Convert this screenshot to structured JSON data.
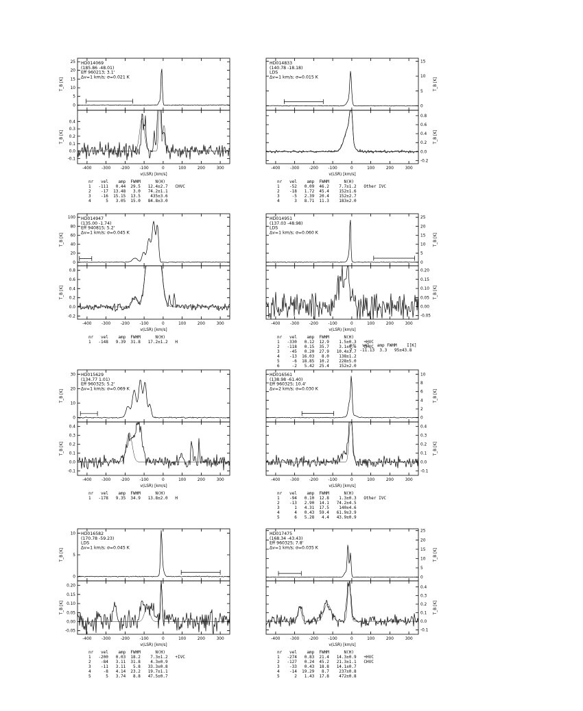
{
  "page": {
    "background": "#ffffff",
    "ink": "#000000"
  },
  "ylabel": "T_B [K]",
  "chart_data": [
    {
      "type": "line",
      "name": "HD014069",
      "info": [
        "(185.86 -48.01)",
        "Eff 960213; 3.1'",
        "Δv=1 km/s; σ=0.021 K"
      ],
      "xlabel": "v(LSR) [km/s]",
      "xlim": [
        -450,
        350
      ],
      "xticks": [
        -400,
        -300,
        -200,
        -100,
        0,
        100,
        200,
        300
      ],
      "xtick_labels": [
        "-400",
        "-300",
        "-200",
        "-100",
        "0",
        "100",
        "200",
        "300"
      ],
      "top": {
        "ylim": [
          -3,
          27
        ],
        "yticks": [
          0,
          5,
          10,
          15,
          20,
          25
        ],
        "ytick_labels": [
          "0",
          "5",
          "10",
          "15",
          "20",
          "25"
        ],
        "noise": 0.15,
        "peaks": [
          [
            -8,
            22,
            3.5
          ],
          [
            -18,
            2,
            6
          ]
        ],
        "marker": [
          -405,
          -160,
          2.2
        ]
      },
      "bottom": {
        "ylim": [
          -0.17,
          0.55
        ],
        "yticks": [
          -0.1,
          0,
          0.1,
          0.2,
          0.3,
          0.4
        ],
        "ytick_labels": [
          "-0.1",
          "0.0",
          "0.1",
          "0.2",
          "0.3",
          "0.4"
        ],
        "noise": 0.07,
        "peaks": [
          [
            -110,
            0.5,
            5
          ],
          [
            -95,
            0.42,
            4
          ],
          [
            -48,
            0.25,
            3
          ],
          [
            -20,
            1.2,
            8
          ],
          [
            5,
            0.3,
            5
          ]
        ],
        "fit": [
          [
            -111,
            0.44,
            12.5
          ],
          [
            -18,
            1.0,
            5
          ],
          [
            5,
            0.35,
            6
          ]
        ]
      },
      "table": {
        "header": "nr   vel    amp  FWHM      N(H)",
        "rows": [
          "1   -111   0.44  29.5   12.4±2.7   CHVC",
          "2    -17  13.48   3.0   74.2±1.1",
          "3    -16  15.15  13.5    435±3.6",
          "4      5   3.05  15.0   84.8±3.0"
        ]
      }
    },
    {
      "type": "line",
      "name": "HD014833",
      "info": [
        "(140.78 -18.18)",
        "LDS",
        "Δv=1 km/s; σ=0.015 K"
      ],
      "xlabel": "v(LSR) [km/s]",
      "xlim": [
        -450,
        350
      ],
      "xticks": [
        -400,
        -300,
        -200,
        -100,
        0,
        100,
        200,
        300
      ],
      "xtick_labels": [
        "-400",
        "-300",
        "-200",
        "-100",
        "0",
        "100",
        "200",
        "300"
      ],
      "top": {
        "ylim": [
          -1.5,
          16
        ],
        "yticks": [
          0,
          5,
          10,
          15
        ],
        "ytick_labels": [
          "0",
          "5",
          "10",
          "15"
        ],
        "noise": 0.08,
        "peaks": [
          [
            -6,
            10.2,
            4.5
          ],
          [
            -14,
            2,
            11
          ]
        ],
        "marker": [
          -355,
          -150,
          1.4
        ]
      },
      "bottom": {
        "ylim": [
          -0.27,
          0.92
        ],
        "yticks": [
          -0.2,
          0,
          0.2,
          0.4,
          0.6,
          0.8
        ],
        "ytick_labels": [
          "-0.2",
          "0.0",
          "0.2",
          "0.4",
          "0.6",
          "0.8"
        ],
        "noise": 0.022,
        "peaks": [
          [
            -20,
            0.5,
            20
          ],
          [
            -6,
            0.55,
            7
          ],
          [
            2,
            0.25,
            4
          ]
        ],
        "fit": [
          [
            -20,
            0.5,
            20
          ],
          [
            -6,
            0.55,
            7
          ],
          [
            2,
            0.25,
            4
          ]
        ]
      },
      "table": {
        "header": "nr   vel    amp  FWHM      N(H)",
        "rows": [
          "1    -52   0.09  46.2    7.7±1.2   Other IVC",
          "2    -18   1.72  45.4    152±1.6",
          "3     -5   2.39  20.4    152±2.7",
          "4      3   8.71  11.3    183±2.0"
        ]
      }
    },
    {
      "type": "line",
      "name": "HD014947",
      "info": [
        "(135.00 -1.74)",
        "Eff 940815; 5.2'",
        "Δv=1 km/s; σ=0.045 K"
      ],
      "xlabel": "v(LSR) [km/s]",
      "xlim": [
        -450,
        350
      ],
      "xticks": [
        -400,
        -300,
        -200,
        -100,
        0,
        100,
        200,
        300
      ],
      "xtick_labels": [
        "-400",
        "-300",
        "-200",
        "-100",
        "0",
        "100",
        "200",
        "300"
      ],
      "top": {
        "ylim": [
          -8,
          108
        ],
        "yticks": [
          0,
          20,
          40,
          60,
          80,
          100
        ],
        "ytick_labels": [
          "0",
          "20",
          "40",
          "60",
          "80",
          "100"
        ],
        "noise": 0.5,
        "peaks": [
          [
            -50,
            90,
            8
          ],
          [
            -30,
            80,
            6
          ],
          [
            -75,
            52,
            9
          ],
          [
            -103,
            22,
            8
          ],
          [
            -148,
            9.4,
            13
          ]
        ],
        "marker": [
          -440,
          -375,
          8
        ]
      },
      "bottom": {
        "ylim": [
          -0.27,
          0.9
        ],
        "yticks": [
          -0.2,
          0,
          0.2,
          0.4,
          0.6,
          0.8
        ],
        "ytick_labels": [
          "-0.2",
          "0.0",
          "0.2",
          "0.4",
          "0.6",
          "0.8"
        ],
        "noise": 0.05,
        "peaks": [
          [
            -150,
            0.22,
            12
          ],
          [
            -50,
            3.5,
            26
          ],
          [
            33,
            0.3,
            3
          ],
          [
            58,
            0.25,
            3
          ]
        ],
        "fit": [
          [
            -148,
            0.22,
            13.5
          ],
          [
            -50,
            3.5,
            26
          ]
        ]
      },
      "table": {
        "header": "nr   vel    amp  FWHM      N(H)",
        "rows": [
          "1   -148   9.39  31.8   17.2±1.2   H"
        ]
      }
    },
    {
      "type": "line",
      "name": "HD014951",
      "info": [
        "(137.03 -48.98)",
        "LDS",
        "Δv=1 km/s; σ=0.060 K"
      ],
      "xlabel": "v(LSR) [km/s]",
      "xlim": [
        -450,
        350
      ],
      "xticks": [
        -400,
        -300,
        -200,
        -100,
        0,
        100,
        200,
        300
      ],
      "xtick_labels": [
        "-400",
        "-300",
        "-200",
        "-100",
        "0",
        "100",
        "200",
        "300"
      ],
      "top": {
        "ylim": [
          -2,
          27
        ],
        "yticks": [
          0,
          5,
          10,
          15,
          20,
          25
        ],
        "ytick_labels": [
          "0",
          "5",
          "10",
          "15",
          "20",
          "25"
        ],
        "noise": 0.12,
        "peaks": [
          [
            -8,
            23,
            3
          ],
          [
            -14,
            4,
            7
          ]
        ],
        "marker": [
          115,
          330,
          2.2
        ]
      },
      "bottom": {
        "ylim": [
          -0.07,
          0.225
        ],
        "yticks": [
          -0.05,
          0,
          0.05,
          0.1,
          0.15,
          0.2
        ],
        "ytick_labels": [
          "-0.05",
          "0.00",
          "0.05",
          "0.10",
          "0.15",
          "0.20"
        ],
        "noise": 0.055,
        "peaks": [
          [
            -55,
            0.13,
            30
          ],
          [
            -20,
            0.12,
            12
          ]
        ],
        "fit": []
      },
      "table": {
        "header": "nr   vel    amp  FWHM      N(H)",
        "rows": [
          "1   -330   0.12  12.9    1.5±0.3   +HVC",
          "2   -118   0.15  35.7    3.1±0.6   CHVC",
          "3    -45   0.20  27.9   10.4±3.7",
          "4    -13  16.03   8.0    138±1.2",
          "5     -6  18.85  10.2    228±5.0",
          "6     -2   5.42  25.4    152±2.0"
        ]
      },
      "table2": {
        "header": "nr   vel   amp FWHM    I[K]",
        "rows": [
          "7   -11.13  3.3   95±43.8"
        ]
      }
    },
    {
      "type": "line",
      "name": "HD015629",
      "info": [
        "(134.77 1.01)",
        "Eff 960325; 5.2'",
        "Δv=1 km/s; σ=0.069 K"
      ],
      "xlabel": "v(LSR) [km/s]",
      "xlim": [
        -450,
        350
      ],
      "xticks": [
        -400,
        -300,
        -200,
        -100,
        0,
        100,
        200,
        300
      ],
      "xtick_labels": [
        "-400",
        "-300",
        "-200",
        "-100",
        "0",
        "100",
        "200",
        "300"
      ],
      "top": {
        "ylim": [
          -3,
          33
        ],
        "yticks": [
          0,
          10,
          20,
          30
        ],
        "ytick_labels": [
          "0",
          "10",
          "20",
          "30"
        ],
        "noise": 0.25,
        "peaks": [
          [
            -185,
            8,
            10
          ],
          [
            -152,
            19,
            10
          ],
          [
            -120,
            26,
            9
          ],
          [
            -95,
            24,
            8
          ],
          [
            -70,
            9,
            7
          ]
        ],
        "marker": [
          -435,
          -345,
          2.8
        ]
      },
      "bottom": {
        "ylim": [
          -0.15,
          0.45
        ],
        "yticks": [
          -0.1,
          0,
          0.1,
          0.2,
          0.3,
          0.4
        ],
        "ytick_labels": [
          "-0.1",
          "0.0",
          "0.1",
          "0.2",
          "0.3",
          "0.4"
        ],
        "noise": 0.05,
        "peaks": [
          [
            -175,
            0.28,
            18
          ],
          [
            -128,
            0.42,
            16
          ],
          [
            150,
            0.28,
            4
          ],
          [
            188,
            0.22,
            3
          ],
          [
            95,
            0.12,
            4
          ]
        ],
        "fit": [
          [
            -178,
            0.33,
            15
          ]
        ]
      },
      "table": {
        "header": "nr   vel    amp  FWHM      N(H)",
        "rows": [
          "1   -178   9.35  34.9   13.8±2.0   H"
        ]
      }
    },
    {
      "type": "line",
      "name": "HD016561",
      "info": [
        "(138.98 -61.40)",
        "Eff 960325; 10.4'",
        "Δv=2 km/s; σ=0.030 K"
      ],
      "xlabel": "v(LSR) [km/s]",
      "xlim": [
        -450,
        350
      ],
      "xticks": [
        -400,
        -300,
        -200,
        -100,
        0,
        100,
        200,
        300
      ],
      "xtick_labels": [
        "-400",
        "-300",
        "-200",
        "-100",
        "0",
        "100",
        "200",
        "300"
      ],
      "top": {
        "ylim": [
          -1,
          11
        ],
        "yticks": [
          0,
          2,
          4,
          6,
          8,
          10
        ],
        "ytick_labels": [
          "0",
          "2",
          "4",
          "6",
          "8",
          "10"
        ],
        "noise": 0.06,
        "peaks": [
          [
            -2,
            8.6,
            4
          ],
          [
            -13,
            2.9,
            6
          ],
          [
            0,
            0.6,
            22
          ]
        ],
        "marker": [
          -262,
          -95,
          0.95
        ]
      },
      "bottom": {
        "ylim": [
          -0.15,
          0.45
        ],
        "yticks": [
          -0.1,
          0,
          0.1,
          0.2,
          0.3,
          0.4
        ],
        "ytick_labels": [
          "-0.1",
          "0.0",
          "0.1",
          "0.2",
          "0.3",
          "0.4"
        ],
        "noise": 0.045,
        "peaks": [
          [
            -6,
            0.52,
            9
          ],
          [
            -28,
            0.1,
            22
          ]
        ],
        "fit": [
          [
            -13,
            0.12,
            6
          ],
          [
            -3,
            0.45,
            8
          ]
        ]
      },
      "table": {
        "header": "nr   vel    amp  FWHM      N(H)",
        "rows": [
          "1    -94   0.10  12.8    1.3±0.3   Other IVC",
          "2    -13   2.90  14.1   74.2±4.5",
          "3      1   4.31  17.5    140±4.6",
          "4      4   0.43  59.4   61.9±3.9",
          "5      6   5.28   4.4   43.9±0.9"
        ]
      }
    },
    {
      "type": "line",
      "name": "HD016582",
      "info": [
        "(170.78 -59.23)",
        "LDS",
        "Δv=1 km/s; σ=0.045 K"
      ],
      "xlabel": "v(LSR) [km/s]",
      "xlim": [
        -450,
        350
      ],
      "xticks": [
        -400,
        -300,
        -200,
        -100,
        0,
        100,
        200,
        300
      ],
      "xtick_labels": [
        "-400",
        "-300",
        "-200",
        "-100",
        "0",
        "100",
        "200",
        "300"
      ],
      "top": {
        "ylim": [
          -1,
          11
        ],
        "yticks": [
          0,
          5,
          10
        ],
        "ytick_labels": [
          "0",
          "5",
          "10"
        ],
        "noise": 0.07,
        "peaks": [
          [
            -10,
            9.2,
            4
          ],
          [
            -4,
            2,
            8
          ]
        ],
        "marker": [
          95,
          300,
          0.95
        ]
      },
      "bottom": {
        "ylim": [
          -0.07,
          0.225
        ],
        "yticks": [
          -0.05,
          0,
          0.05,
          0.1,
          0.15,
          0.2
        ],
        "ytick_labels": [
          "-0.05",
          "0.00",
          "0.05",
          "0.10",
          "0.15",
          "0.20"
        ],
        "noise": 0.04,
        "peaks": [
          [
            -100,
            0.09,
            28
          ],
          [
            -10,
            0.27,
            4
          ],
          [
            -255,
            0.07,
            10
          ],
          [
            -60,
            0.06,
            12
          ]
        ],
        "fit": [
          [
            -84,
            0.08,
            14
          ],
          [
            -10,
            0.24,
            4
          ]
        ]
      },
      "table": {
        "header": "nr   vel    amp  FWHM      N(H)",
        "rows": [
          "1   -200   0.03  18.2    7.3±1.2   +IVC",
          "2    -84   3.11  31.8    4.3±0.9",
          "3    -11   3.11   5.8   33.3±0.8",
          "4     -8   4.14  23.2   19.7±1.1",
          "5      5   3.74   8.8   47.5±0.7"
        ]
      }
    },
    {
      "type": "line",
      "name": "HD017475",
      "info": [
        "(168.34 -43.43)",
        "Eff 960325; 7.8'",
        "Δv=1 km/s; σ=0.035 K"
      ],
      "xlabel": "v(LSR) [km/s]",
      "xlim": [
        -450,
        350
      ],
      "xticks": [
        -400,
        -300,
        -200,
        -100,
        0,
        100,
        200,
        300
      ],
      "xtick_labels": [
        "-400",
        "-300",
        "-200",
        "-100",
        "0",
        "100",
        "200",
        "300"
      ],
      "top": {
        "ylim": [
          -2,
          26
        ],
        "yticks": [
          0,
          5,
          10,
          15,
          20,
          25
        ],
        "ytick_labels": [
          "0",
          "5",
          "10",
          "15",
          "20",
          "25"
        ],
        "noise": 0.1,
        "peaks": [
          [
            -20,
            17,
            4
          ],
          [
            -7,
            13,
            3.5
          ],
          [
            -33,
            2.5,
            8
          ]
        ],
        "marker": [
          -385,
          -265,
          2.0
        ]
      },
      "bottom": {
        "ylim": [
          -0.15,
          0.47
        ],
        "yticks": [
          -0.1,
          0,
          0.1,
          0.2,
          0.3,
          0.4
        ],
        "ytick_labels": [
          "-0.1",
          "0.0",
          "0.1",
          "0.2",
          "0.3",
          "0.4"
        ],
        "noise": 0.045,
        "peaks": [
          [
            -270,
            0.16,
            12
          ],
          [
            -130,
            0.2,
            22
          ],
          [
            -15,
            0.48,
            11
          ]
        ],
        "fit": [
          [
            -274,
            0.17,
            9
          ],
          [
            -127,
            0.2,
            19
          ],
          [
            -14,
            0.45,
            8
          ]
        ]
      },
      "table": {
        "header": "nr   vel    amp  FWHM      N(H)",
        "rows": [
          "1   -274   0.83  21.4   14.3±0.9   +HVC",
          "2   -127   0.24  45.2   21.3±1.1   CHVC",
          "3    -33   0.43  18.8   14.1±0.7",
          "4    -14  19.29   8.7    237±0.8",
          "5      2   1.43  17.8    472±0.8"
        ]
      }
    }
  ]
}
